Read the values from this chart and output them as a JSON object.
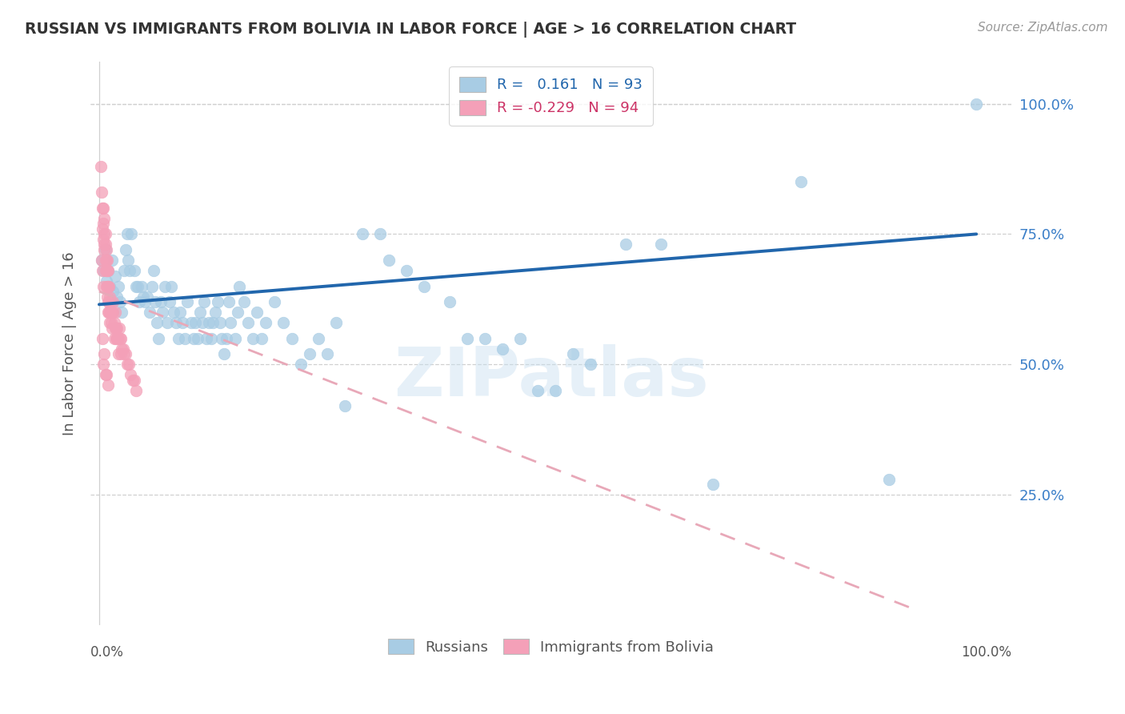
{
  "title": "RUSSIAN VS IMMIGRANTS FROM BOLIVIA IN LABOR FORCE | AGE > 16 CORRELATION CHART",
  "source": "Source: ZipAtlas.com",
  "ylabel": "In Labor Force | Age > 16",
  "ytick_labels": [
    "25.0%",
    "50.0%",
    "75.0%",
    "100.0%"
  ],
  "ytick_values": [
    0.25,
    0.5,
    0.75,
    1.0
  ],
  "blue_color": "#a8cce4",
  "pink_color": "#f4a0b8",
  "line_blue": "#2166ac",
  "line_pink": "#e8a8b8",
  "watermark": "ZIPatlas",
  "blue_scatter": [
    [
      0.003,
      0.7
    ],
    [
      0.005,
      0.68
    ],
    [
      0.007,
      0.72
    ],
    [
      0.008,
      0.66
    ],
    [
      0.01,
      0.68
    ],
    [
      0.012,
      0.65
    ],
    [
      0.014,
      0.62
    ],
    [
      0.015,
      0.7
    ],
    [
      0.016,
      0.64
    ],
    [
      0.018,
      0.67
    ],
    [
      0.02,
      0.63
    ],
    [
      0.022,
      0.65
    ],
    [
      0.024,
      0.62
    ],
    [
      0.026,
      0.6
    ],
    [
      0.028,
      0.68
    ],
    [
      0.03,
      0.72
    ],
    [
      0.032,
      0.75
    ],
    [
      0.033,
      0.7
    ],
    [
      0.035,
      0.68
    ],
    [
      0.037,
      0.75
    ],
    [
      0.04,
      0.68
    ],
    [
      0.042,
      0.65
    ],
    [
      0.044,
      0.65
    ],
    [
      0.046,
      0.62
    ],
    [
      0.048,
      0.65
    ],
    [
      0.05,
      0.63
    ],
    [
      0.052,
      0.62
    ],
    [
      0.055,
      0.63
    ],
    [
      0.058,
      0.6
    ],
    [
      0.06,
      0.65
    ],
    [
      0.062,
      0.68
    ],
    [
      0.064,
      0.62
    ],
    [
      0.066,
      0.58
    ],
    [
      0.068,
      0.55
    ],
    [
      0.07,
      0.62
    ],
    [
      0.072,
      0.6
    ],
    [
      0.075,
      0.65
    ],
    [
      0.078,
      0.58
    ],
    [
      0.08,
      0.62
    ],
    [
      0.082,
      0.65
    ],
    [
      0.085,
      0.6
    ],
    [
      0.088,
      0.58
    ],
    [
      0.09,
      0.55
    ],
    [
      0.092,
      0.6
    ],
    [
      0.095,
      0.58
    ],
    [
      0.098,
      0.55
    ],
    [
      0.1,
      0.62
    ],
    [
      0.105,
      0.58
    ],
    [
      0.108,
      0.55
    ],
    [
      0.11,
      0.58
    ],
    [
      0.112,
      0.55
    ],
    [
      0.115,
      0.6
    ],
    [
      0.118,
      0.58
    ],
    [
      0.12,
      0.62
    ],
    [
      0.122,
      0.55
    ],
    [
      0.125,
      0.58
    ],
    [
      0.128,
      0.55
    ],
    [
      0.13,
      0.58
    ],
    [
      0.132,
      0.6
    ],
    [
      0.135,
      0.62
    ],
    [
      0.138,
      0.58
    ],
    [
      0.14,
      0.55
    ],
    [
      0.142,
      0.52
    ],
    [
      0.145,
      0.55
    ],
    [
      0.148,
      0.62
    ],
    [
      0.15,
      0.58
    ],
    [
      0.155,
      0.55
    ],
    [
      0.158,
      0.6
    ],
    [
      0.16,
      0.65
    ],
    [
      0.165,
      0.62
    ],
    [
      0.17,
      0.58
    ],
    [
      0.175,
      0.55
    ],
    [
      0.18,
      0.6
    ],
    [
      0.185,
      0.55
    ],
    [
      0.19,
      0.58
    ],
    [
      0.2,
      0.62
    ],
    [
      0.21,
      0.58
    ],
    [
      0.22,
      0.55
    ],
    [
      0.23,
      0.5
    ],
    [
      0.24,
      0.52
    ],
    [
      0.25,
      0.55
    ],
    [
      0.26,
      0.52
    ],
    [
      0.27,
      0.58
    ],
    [
      0.28,
      0.42
    ],
    [
      0.3,
      0.75
    ],
    [
      0.32,
      0.75
    ],
    [
      0.33,
      0.7
    ],
    [
      0.35,
      0.68
    ],
    [
      0.37,
      0.65
    ],
    [
      0.4,
      0.62
    ],
    [
      0.42,
      0.55
    ],
    [
      0.44,
      0.55
    ],
    [
      0.46,
      0.53
    ],
    [
      0.48,
      0.55
    ],
    [
      0.5,
      0.45
    ],
    [
      0.52,
      0.45
    ],
    [
      0.54,
      0.52
    ],
    [
      0.56,
      0.5
    ],
    [
      0.6,
      0.73
    ],
    [
      0.64,
      0.73
    ],
    [
      0.7,
      0.27
    ],
    [
      0.8,
      0.85
    ],
    [
      0.9,
      0.28
    ],
    [
      1.0,
      1.0
    ]
  ],
  "pink_scatter": [
    [
      0.002,
      0.88
    ],
    [
      0.003,
      0.83
    ],
    [
      0.004,
      0.8
    ],
    [
      0.004,
      0.76
    ],
    [
      0.005,
      0.8
    ],
    [
      0.005,
      0.77
    ],
    [
      0.005,
      0.74
    ],
    [
      0.006,
      0.78
    ],
    [
      0.006,
      0.75
    ],
    [
      0.006,
      0.73
    ],
    [
      0.006,
      0.72
    ],
    [
      0.007,
      0.75
    ],
    [
      0.007,
      0.73
    ],
    [
      0.007,
      0.7
    ],
    [
      0.007,
      0.68
    ],
    [
      0.008,
      0.72
    ],
    [
      0.008,
      0.7
    ],
    [
      0.008,
      0.68
    ],
    [
      0.008,
      0.65
    ],
    [
      0.009,
      0.7
    ],
    [
      0.009,
      0.68
    ],
    [
      0.009,
      0.65
    ],
    [
      0.009,
      0.63
    ],
    [
      0.01,
      0.68
    ],
    [
      0.01,
      0.65
    ],
    [
      0.01,
      0.62
    ],
    [
      0.01,
      0.6
    ],
    [
      0.011,
      0.65
    ],
    [
      0.011,
      0.62
    ],
    [
      0.011,
      0.6
    ],
    [
      0.012,
      0.63
    ],
    [
      0.012,
      0.6
    ],
    [
      0.012,
      0.58
    ],
    [
      0.013,
      0.62
    ],
    [
      0.013,
      0.6
    ],
    [
      0.014,
      0.6
    ],
    [
      0.014,
      0.58
    ],
    [
      0.015,
      0.6
    ],
    [
      0.015,
      0.57
    ],
    [
      0.016,
      0.62
    ],
    [
      0.016,
      0.6
    ],
    [
      0.017,
      0.58
    ],
    [
      0.017,
      0.55
    ],
    [
      0.018,
      0.6
    ],
    [
      0.018,
      0.57
    ],
    [
      0.019,
      0.57
    ],
    [
      0.019,
      0.55
    ],
    [
      0.02,
      0.57
    ],
    [
      0.02,
      0.55
    ],
    [
      0.021,
      0.55
    ],
    [
      0.022,
      0.55
    ],
    [
      0.022,
      0.52
    ],
    [
      0.023,
      0.57
    ],
    [
      0.024,
      0.55
    ],
    [
      0.025,
      0.55
    ],
    [
      0.025,
      0.52
    ],
    [
      0.026,
      0.53
    ],
    [
      0.027,
      0.53
    ],
    [
      0.028,
      0.52
    ],
    [
      0.03,
      0.52
    ],
    [
      0.032,
      0.5
    ],
    [
      0.034,
      0.5
    ],
    [
      0.036,
      0.48
    ],
    [
      0.038,
      0.47
    ],
    [
      0.04,
      0.47
    ],
    [
      0.042,
      0.45
    ],
    [
      0.004,
      0.55
    ],
    [
      0.005,
      0.5
    ],
    [
      0.006,
      0.52
    ],
    [
      0.007,
      0.48
    ],
    [
      0.008,
      0.48
    ],
    [
      0.01,
      0.46
    ],
    [
      0.003,
      0.7
    ],
    [
      0.004,
      0.68
    ],
    [
      0.005,
      0.65
    ]
  ],
  "blue_line_x": [
    0.0,
    1.0
  ],
  "blue_line_y": [
    0.615,
    0.75
  ],
  "pink_line_x": [
    0.0,
    0.93
  ],
  "pink_line_y": [
    0.64,
    0.03
  ],
  "xlim": [
    -0.01,
    1.04
  ],
  "ylim": [
    0.0,
    1.08
  ],
  "xtick_positions": [
    0.0,
    0.1,
    0.2,
    0.3,
    0.4,
    0.5,
    0.6,
    0.7,
    0.8,
    0.9,
    1.0
  ]
}
